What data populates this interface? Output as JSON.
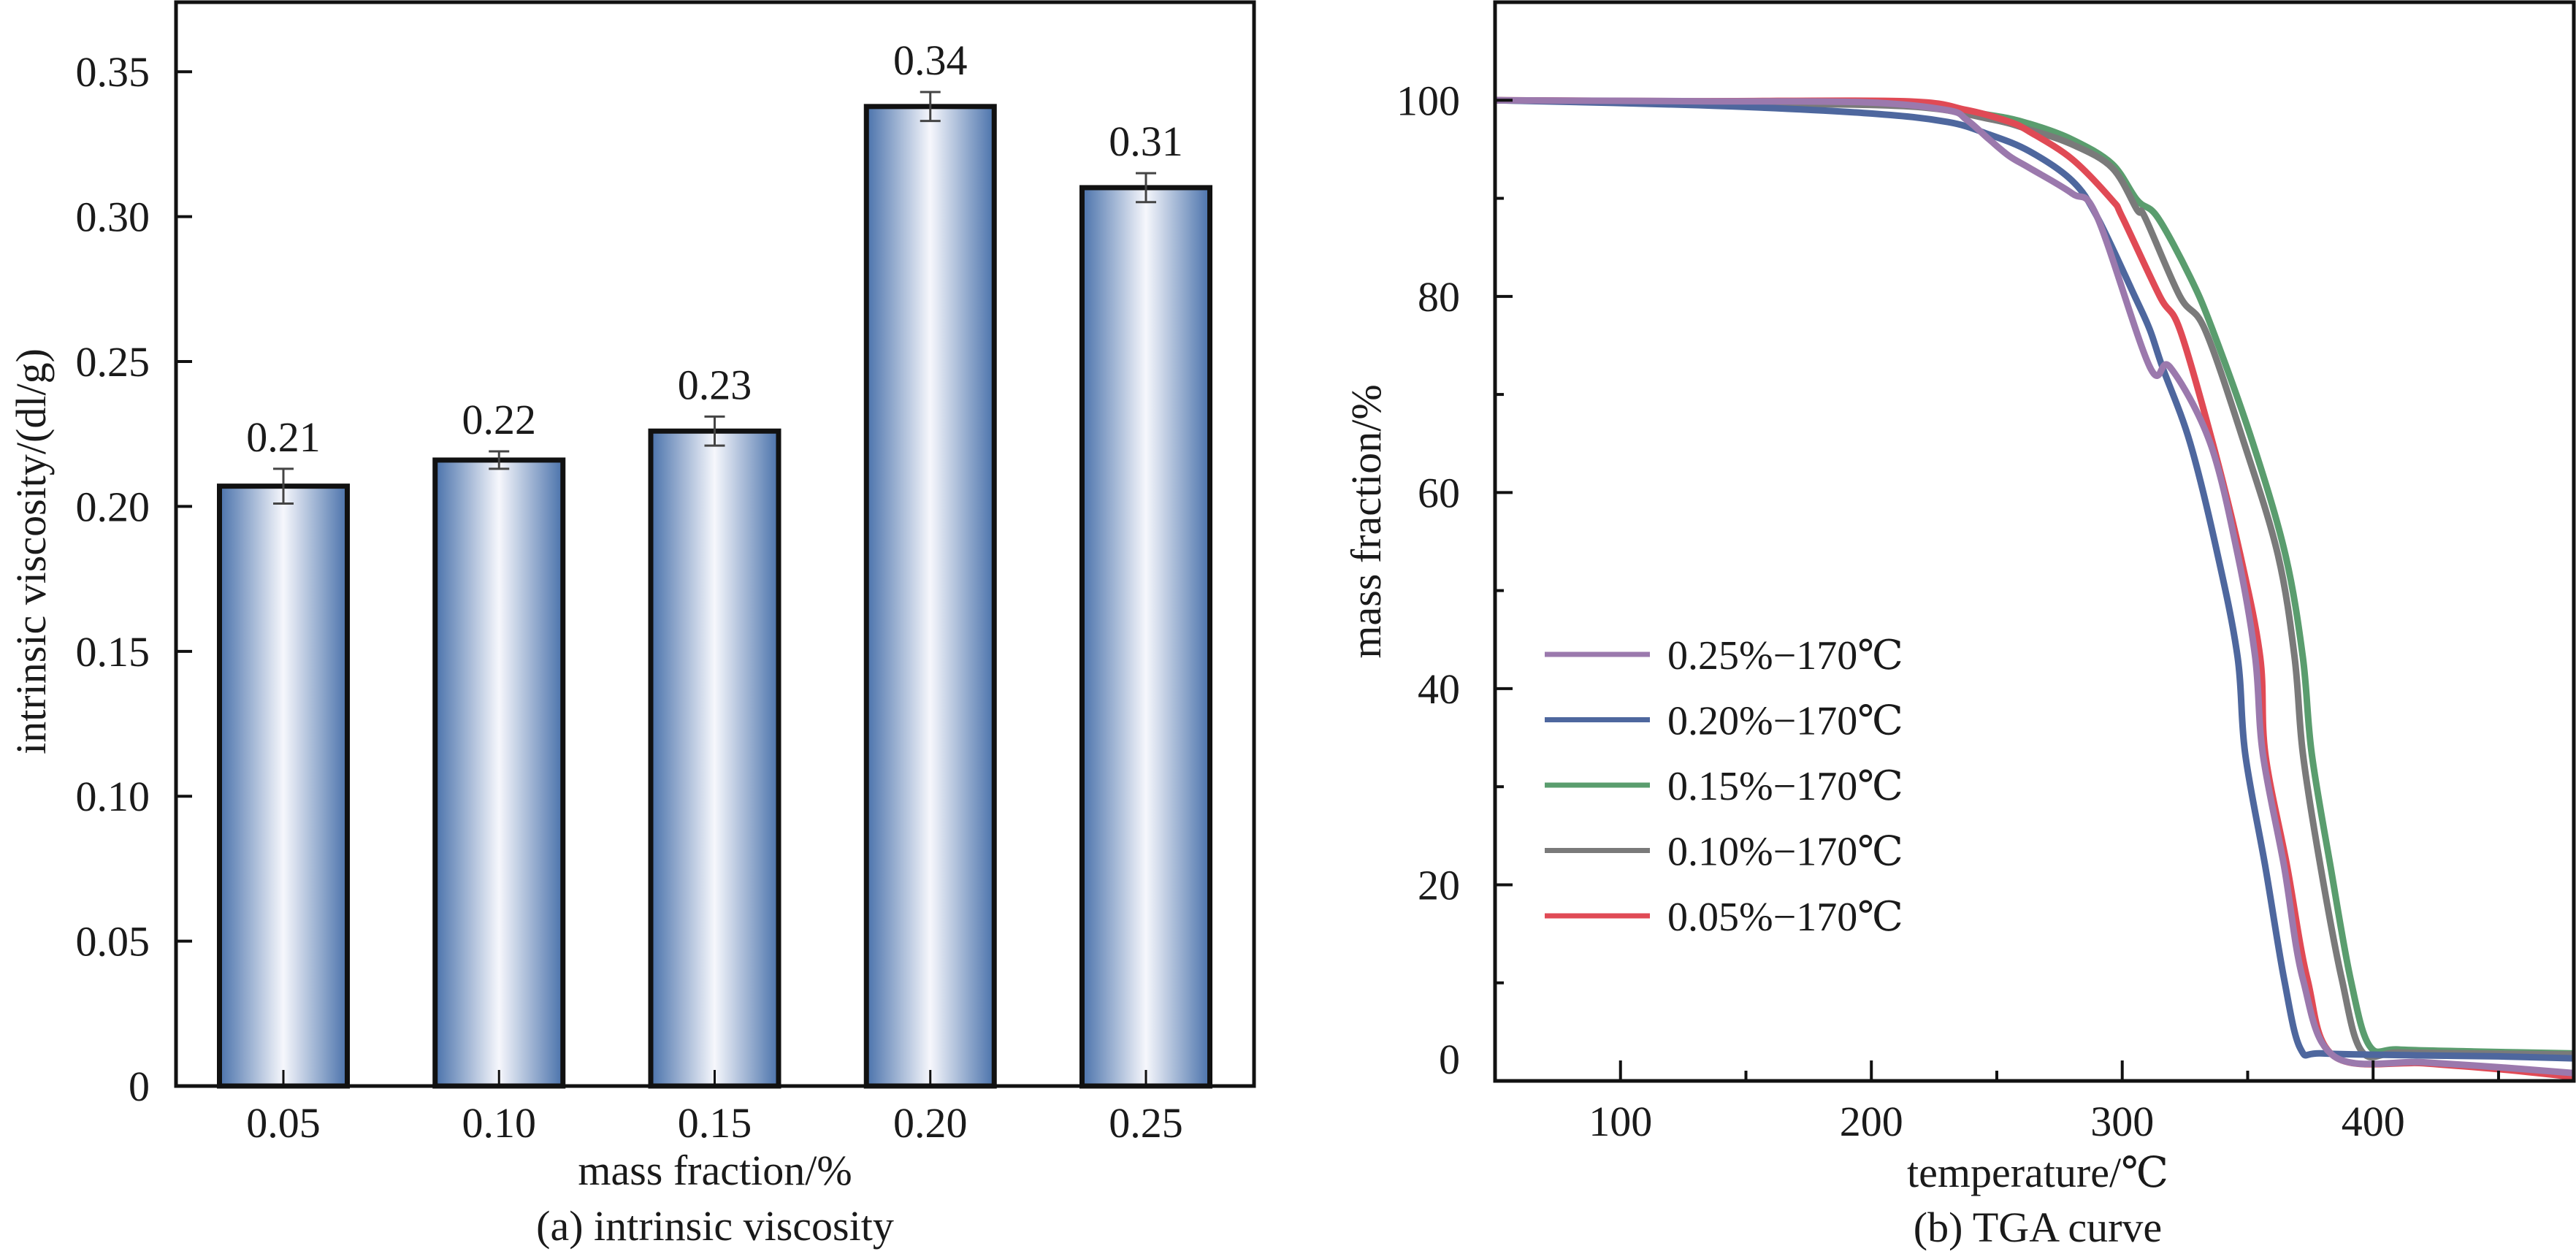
{
  "chart_data": [
    {
      "type": "bar",
      "title": "(a) intrinsic viscosity",
      "xlabel": "mass fraction/%",
      "ylabel": "intrinsic viscosity/(dl/g)",
      "categories": [
        "0.05",
        "0.10",
        "0.15",
        "0.20",
        "0.25"
      ],
      "values": [
        0.207,
        0.216,
        0.226,
        0.338,
        0.31
      ],
      "errors": [
        0.006,
        0.003,
        0.005,
        0.005,
        0.005
      ],
      "value_labels": [
        "0.21",
        "0.22",
        "0.23",
        "0.34",
        "0.31"
      ],
      "ylim": [
        0,
        0.374
      ],
      "yticks": [
        0,
        0.05,
        0.1,
        0.15,
        0.2,
        0.25,
        0.3,
        0.35
      ],
      "ytick_labels": [
        "0",
        "0.05",
        "0.10",
        "0.15",
        "0.20",
        "0.25",
        "0.30",
        "0.35"
      ],
      "grid": false,
      "bar_style": "horizontal blue-white-blue gradient with black outline",
      "colors": {
        "bar_edge": "#4a72ab",
        "bar_center": "#f4f5fb",
        "outline": "#111111",
        "error_bar": "#444444"
      }
    },
    {
      "type": "line",
      "title": "(b) TGA curve",
      "xlabel": "temperature/℃",
      "ylabel": "mass fraction/%",
      "xlim": [
        50,
        480
      ],
      "ylim": [
        0,
        110
      ],
      "xticks": [
        100,
        200,
        300,
        400
      ],
      "xtick_labels": [
        "100",
        "200",
        "300",
        "400"
      ],
      "xminor_ticks": [
        150,
        250,
        350,
        450
      ],
      "yticks": [
        0,
        20,
        40,
        60,
        80,
        100
      ],
      "ytick_labels": [
        "0",
        "20",
        "40",
        "60",
        "80",
        "100"
      ],
      "yminor_ticks": [
        10,
        30,
        50,
        70,
        90
      ],
      "grid": false,
      "legend_position": "lower-left",
      "series": [
        {
          "name": "0.25%−170℃",
          "color": "#9b79ad",
          "x": [
            50,
            130,
            197,
            230,
            238,
            247,
            255,
            263,
            280,
            290,
            311,
            319,
            335,
            346,
            353,
            356,
            364.5,
            372,
            384.5,
            420,
            450,
            480
          ],
          "y": [
            100,
            99.9,
            99.8,
            99.0,
            98.0,
            96.0,
            94.3,
            93.1,
            90.5,
            88.1,
            72.8,
            76.6,
            65.1,
            53.7,
            43.2,
            33.4,
            21.9,
            10.4,
            2.5,
            1.9,
            1.4,
            0.8
          ]
        },
        {
          "name": "0.20%−170℃",
          "color": "#4e679e",
          "x": [
            50,
            131,
            197,
            230,
            247,
            263,
            280,
            290,
            305,
            311,
            316,
            327,
            338,
            346,
            349,
            357,
            364.5,
            371,
            380,
            420,
            450,
            480
          ],
          "y": [
            100,
            99.5,
            98.7,
            97.8,
            96.5,
            94.8,
            91.8,
            88.1,
            80.0,
            76.6,
            72.8,
            65.1,
            53.7,
            43.2,
            33.4,
            21.9,
            10.4,
            3.3,
            2.8,
            2.6,
            2.5,
            2.3
          ]
        },
        {
          "name": "0.15%−170℃",
          "color": "#5a9d6e",
          "x": [
            50,
            130,
            213,
            247,
            263,
            280,
            296,
            306,
            314,
            327,
            336,
            352,
            365,
            372,
            375.5,
            383,
            391,
            398.5,
            410,
            440,
            480
          ],
          "y": [
            100,
            99.8,
            99.5,
            98.5,
            97.6,
            96.0,
            93.5,
            89.8,
            88.1,
            82.0,
            76.6,
            65.1,
            53.7,
            43.2,
            33.4,
            21.9,
            10.4,
            3.6,
            3.2,
            3.0,
            2.8
          ]
        },
        {
          "name": "0.10%−170℃",
          "color": "#7a7a7a",
          "x": [
            50,
            130,
            213,
            247,
            263,
            280,
            296,
            306,
            309,
            323,
            333,
            348.5,
            362,
            368.7,
            372,
            379,
            387.5,
            395.5,
            410,
            440,
            480
          ],
          "y": [
            100,
            99.7,
            99.4,
            98.1,
            97.0,
            95.5,
            93.1,
            88.8,
            88.1,
            80.0,
            76.6,
            65.1,
            53.7,
            43.2,
            33.4,
            21.9,
            10.4,
            3.0,
            2.9,
            2.8,
            2.7
          ]
        },
        {
          "name": "0.05%−170℃",
          "color": "#e04a55",
          "x": [
            50,
            130,
            213,
            238,
            255,
            263,
            280,
            296,
            300,
            315,
            323,
            336,
            347,
            355,
            357,
            365.7,
            373.8,
            384.5,
            420,
            450,
            480
          ],
          "y": [
            100,
            99.9,
            99.9,
            99.0,
            97.8,
            96.8,
            94.0,
            89.8,
            88.1,
            80.0,
            76.6,
            65.1,
            53.7,
            43.2,
            33.4,
            21.9,
            10.4,
            2.5,
            1.8,
            1.2,
            0.4
          ]
        }
      ]
    }
  ]
}
